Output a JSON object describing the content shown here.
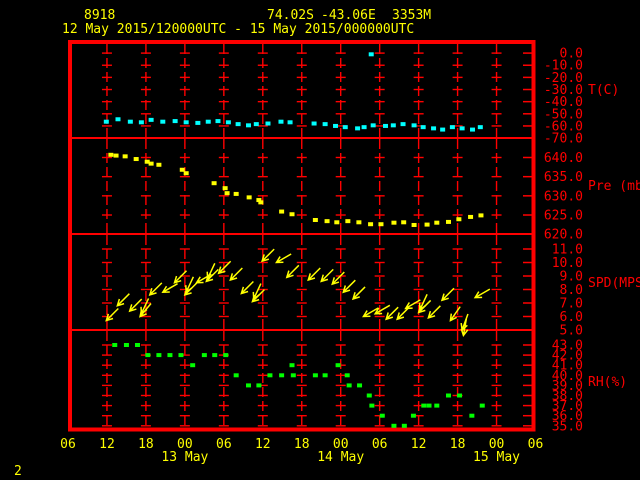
{
  "header": {
    "station_id": "8918",
    "latitude": "74.02S",
    "longitude": "-43.06E",
    "elevation": "3353M",
    "time_range": "12 May 2015/120000UTC - 15 May 2015/000000UTC"
  },
  "page_number": "2",
  "colors": {
    "background": "#000000",
    "frame": "#ff0000",
    "header_text": "#ffff00",
    "temperature": "#00ffff",
    "pressure": "#ffff00",
    "wind": "#ffff00",
    "humidity": "#00ff00"
  },
  "x_axis": {
    "unit": "hours since 12 May 2015 06UTC",
    "tick_hours": [
      0,
      6,
      12,
      18,
      24,
      30,
      36,
      42,
      48,
      54,
      60,
      66,
      72
    ],
    "tick_labels": [
      "06",
      "12",
      "18",
      "00",
      "06",
      "12",
      "18",
      "00",
      "06",
      "12",
      "18",
      "00",
      "06"
    ],
    "date_labels": [
      {
        "label": "13 May",
        "hour": 18
      },
      {
        "label": "14 May",
        "hour": 42
      },
      {
        "label": "15 May",
        "hour": 66
      }
    ]
  },
  "chart_data": [
    {
      "type": "scatter",
      "name": "temperature",
      "axis_label": "T(C)",
      "color": "#00ffff",
      "marker": "square",
      "tick_values": [
        0,
        -10,
        -20,
        -30,
        -40,
        -50,
        -60,
        -70
      ],
      "tick_labels": [
        "0.0",
        "-10.0",
        "-20.0",
        "-30.0",
        "-40.0",
        "-50.0",
        "-60.0",
        "-70.0"
      ],
      "points": [
        [
          5.9,
          -56.5
        ],
        [
          7.7,
          -54.5
        ],
        [
          9.6,
          -56.5
        ],
        [
          11.3,
          -57
        ],
        [
          12.8,
          -55
        ],
        [
          14.6,
          -56.5
        ],
        [
          16.5,
          -56
        ],
        [
          18.2,
          -57
        ],
        [
          20,
          -57.5
        ],
        [
          21.6,
          -56.5
        ],
        [
          23.1,
          -56
        ],
        [
          24.7,
          -57
        ],
        [
          26.2,
          -58.5
        ],
        [
          27.8,
          -59.5
        ],
        [
          29,
          -58.5
        ],
        [
          30.8,
          -58
        ],
        [
          32.8,
          -56.5
        ],
        [
          34.2,
          -57
        ],
        [
          37.9,
          -58
        ],
        [
          39.6,
          -58.5
        ],
        [
          41.2,
          -60
        ],
        [
          42.7,
          -61
        ],
        [
          44.6,
          -62
        ],
        [
          45.6,
          -61
        ],
        [
          47,
          -59.5
        ],
        [
          48.9,
          -60
        ],
        [
          50.1,
          -59.5
        ],
        [
          51.6,
          -58.5
        ],
        [
          53.3,
          -59.5
        ],
        [
          54.7,
          -61
        ],
        [
          56.3,
          -62
        ],
        [
          57.7,
          -63
        ],
        [
          59.2,
          -61
        ],
        [
          60.7,
          -62
        ],
        [
          62.3,
          -63
        ],
        [
          63.5,
          -61
        ]
      ],
      "outlier_points": [
        [
          46.7,
          -1
        ]
      ]
    },
    {
      "type": "scatter",
      "name": "pressure",
      "axis_label": "Pre (mb)",
      "color": "#ffff00",
      "marker": "square",
      "tick_values": [
        640,
        635,
        630,
        625,
        620
      ],
      "tick_labels": [
        "640.0",
        "635.0",
        "630.0",
        "625.0",
        "620.0"
      ],
      "points": [
        [
          6.6,
          640.7
        ],
        [
          7.4,
          640.5
        ],
        [
          8.8,
          640.3
        ],
        [
          10.5,
          639.6
        ],
        [
          12.2,
          638.9
        ],
        [
          12.8,
          638.4
        ],
        [
          14,
          638.1
        ],
        [
          17.6,
          636.8
        ],
        [
          18.2,
          635.9
        ],
        [
          22.5,
          633.3
        ],
        [
          24.2,
          632
        ],
        [
          24.5,
          630.7
        ],
        [
          25.9,
          630.5
        ],
        [
          27.9,
          629.6
        ],
        [
          29.4,
          628.9
        ],
        [
          29.7,
          628.3
        ],
        [
          32.9,
          625.9
        ],
        [
          34.5,
          625.2
        ],
        [
          38.1,
          623.7
        ],
        [
          39.9,
          623.4
        ],
        [
          41.4,
          623.1
        ],
        [
          43.1,
          623.4
        ],
        [
          44.8,
          623.1
        ],
        [
          46.6,
          622.6
        ],
        [
          48.2,
          622.6
        ],
        [
          50.2,
          623
        ],
        [
          51.7,
          623.1
        ],
        [
          53.3,
          622.4
        ],
        [
          55.3,
          622.5
        ],
        [
          56.8,
          623
        ],
        [
          58.6,
          623.2
        ],
        [
          60.2,
          623.9
        ],
        [
          62,
          624.5
        ],
        [
          63.6,
          624.9
        ]
      ]
    },
    {
      "type": "vector",
      "name": "wind-speed",
      "axis_label": "SPD(MPS)",
      "color": "#ffff00",
      "marker": "arrow",
      "tick_values": [
        11,
        10,
        9,
        8,
        7,
        6,
        5
      ],
      "tick_labels": [
        "11.0",
        "10.0",
        "9.0",
        "8.0",
        "7.0",
        "6.0",
        "5.0"
      ],
      "points": [
        [
          5.9,
          5.7,
          225
        ],
        [
          7.6,
          6.8,
          225
        ],
        [
          9.5,
          6.4,
          225
        ],
        [
          11.1,
          6,
          230
        ],
        [
          11.3,
          6.2,
          245
        ],
        [
          12.6,
          7.6,
          225
        ],
        [
          14.6,
          7.8,
          210
        ],
        [
          16.4,
          8.5,
          225
        ],
        [
          18,
          7.6,
          225
        ],
        [
          18.2,
          7.8,
          245
        ],
        [
          19.8,
          8.5,
          210
        ],
        [
          21.3,
          8.6,
          225
        ],
        [
          21.5,
          8.8,
          245
        ],
        [
          23.2,
          9.2,
          225
        ],
        [
          25,
          8.7,
          225
        ],
        [
          26.7,
          7.7,
          225
        ],
        [
          28.4,
          7.1,
          225
        ],
        [
          28.6,
          7.3,
          245
        ],
        [
          29.9,
          10.1,
          225
        ],
        [
          32.1,
          10,
          210
        ],
        [
          33.7,
          8.9,
          225
        ],
        [
          37,
          8.7,
          225
        ],
        [
          39,
          8.6,
          225
        ],
        [
          40.7,
          8.4,
          225
        ],
        [
          42.4,
          7.8,
          225
        ],
        [
          43.9,
          7.3,
          225
        ],
        [
          45.5,
          6,
          210
        ],
        [
          47.3,
          6.2,
          210
        ],
        [
          49,
          5.8,
          225
        ],
        [
          50.7,
          5.8,
          225
        ],
        [
          52,
          6.6,
          210
        ],
        [
          54,
          6.3,
          225
        ],
        [
          54.2,
          6.5,
          245
        ],
        [
          55.5,
          5.9,
          225
        ],
        [
          57.6,
          7.2,
          225
        ],
        [
          58.9,
          5.7,
          235
        ],
        [
          60.7,
          5,
          250
        ],
        [
          60.9,
          4.6,
          260
        ],
        [
          62.7,
          7.4,
          210
        ]
      ]
    },
    {
      "type": "scatter",
      "name": "relative-humidity",
      "axis_label": "RH(%)",
      "color": "#00ff00",
      "marker": "square",
      "tick_values": [
        43,
        42,
        41,
        40,
        39,
        38,
        37,
        36,
        35
      ],
      "tick_labels": [
        "43.0",
        "42.0",
        "41.0",
        "40.0",
        "39.0",
        "38.0",
        "37.0",
        "36.0",
        "35.0"
      ],
      "points": [
        [
          7.2,
          43
        ],
        [
          9,
          43
        ],
        [
          10.7,
          43
        ],
        [
          12.3,
          42
        ],
        [
          14,
          42
        ],
        [
          15.7,
          42
        ],
        [
          17.4,
          42
        ],
        [
          19.2,
          41
        ],
        [
          21,
          42
        ],
        [
          22.6,
          42
        ],
        [
          24.3,
          42
        ],
        [
          25.9,
          40
        ],
        [
          27.8,
          39
        ],
        [
          29.4,
          39
        ],
        [
          31.1,
          40
        ],
        [
          32.9,
          40
        ],
        [
          34.5,
          41
        ],
        [
          34.7,
          40
        ],
        [
          38.1,
          40
        ],
        [
          39.6,
          40
        ],
        [
          41.6,
          41
        ],
        [
          43,
          40
        ],
        [
          43.3,
          39
        ],
        [
          44.9,
          39
        ],
        [
          46.4,
          38
        ],
        [
          46.8,
          37
        ],
        [
          48.4,
          36
        ],
        [
          50.2,
          35
        ],
        [
          51.8,
          35
        ],
        [
          53.2,
          36
        ],
        [
          54.8,
          37
        ],
        [
          55.6,
          37
        ],
        [
          56.8,
          37
        ],
        [
          58.6,
          38
        ],
        [
          60.3,
          38
        ],
        [
          62.2,
          36
        ],
        [
          63.8,
          37
        ]
      ]
    }
  ]
}
